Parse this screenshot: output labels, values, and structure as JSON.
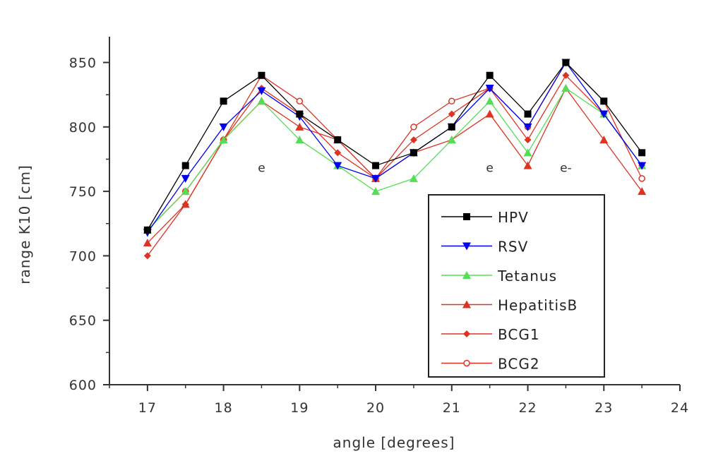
{
  "chart_data": {
    "type": "line",
    "xlabel": "angle [degrees]",
    "ylabel": "range K10 [cm]",
    "xlim": [
      16.5,
      24
    ],
    "ylim": [
      600,
      870
    ],
    "xticks": [
      17,
      18,
      19,
      20,
      21,
      22,
      23,
      24
    ],
    "yticks": [
      600,
      650,
      700,
      750,
      800,
      850
    ],
    "x": [
      17,
      17.5,
      18,
      18.5,
      19,
      19.5,
      20,
      20.5,
      21,
      21.5,
      22,
      22.5,
      23,
      23.5
    ],
    "series": [
      {
        "name": "HPV",
        "color": "#000000",
        "marker": "square-filled",
        "values": [
          720,
          770,
          820,
          840,
          810,
          790,
          770,
          780,
          800,
          840,
          810,
          850,
          820,
          780
        ]
      },
      {
        "name": "RSV",
        "color": "#0000ee",
        "marker": "triangle-down-filled",
        "values": [
          718,
          760,
          800,
          828,
          808,
          770,
          760,
          780,
          800,
          830,
          800,
          850,
          810,
          770
        ]
      },
      {
        "name": "Tetanus",
        "color": "#55dd55",
        "marker": "triangle-up-filled",
        "values": [
          720,
          750,
          790,
          820,
          790,
          770,
          750,
          760,
          790,
          820,
          780,
          830,
          810,
          770
        ]
      },
      {
        "name": "HepatitisB",
        "color": "#dd3322",
        "marker": "triangle-up-filled",
        "values": [
          710,
          740,
          790,
          820,
          800,
          790,
          760,
          780,
          790,
          810,
          770,
          830,
          790,
          750
        ]
      },
      {
        "name": "BCG1",
        "color": "#dd3322",
        "marker": "diamond-filled",
        "values": [
          700,
          740,
          790,
          830,
          810,
          780,
          760,
          790,
          810,
          830,
          790,
          840,
          810,
          770
        ]
      },
      {
        "name": "BCG2",
        "color": "#dd3322",
        "marker": "circle-open",
        "values": [
          720,
          750,
          790,
          840,
          820,
          790,
          760,
          800,
          820,
          830,
          800,
          850,
          820,
          760
        ]
      }
    ],
    "annotations": [
      {
        "text": "e",
        "x": 18.5,
        "y": 765
      },
      {
        "text": "e",
        "x": 21.5,
        "y": 765
      },
      {
        "text": "e-",
        "x": 22.5,
        "y": 765
      }
    ],
    "legend": {
      "position": "bottom-right"
    },
    "grid": false
  }
}
